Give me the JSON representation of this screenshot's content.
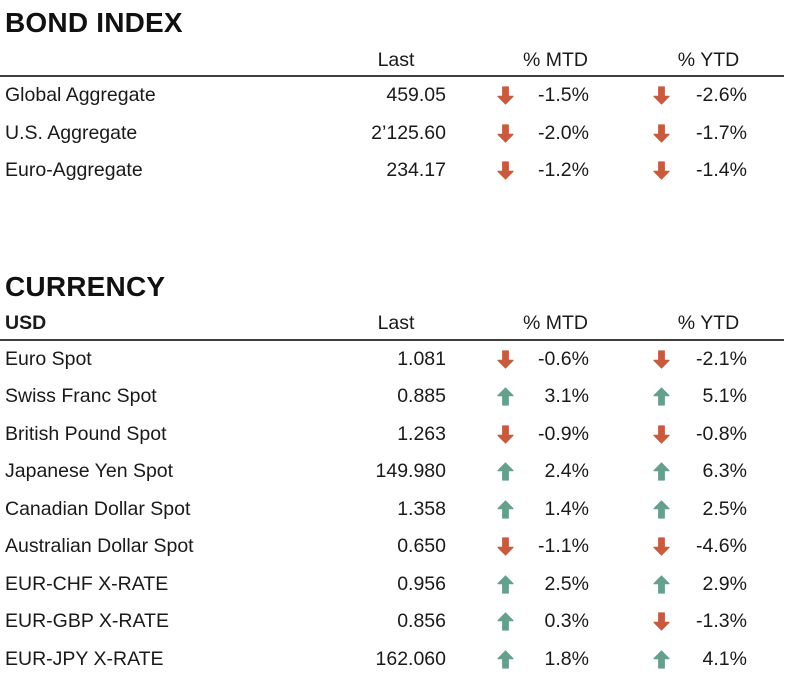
{
  "colors": {
    "up_arrow": "#64a08c",
    "down_arrow": "#c85a3e",
    "rule": "#3f3f3f",
    "text": "#1a1a1a"
  },
  "sections": [
    {
      "title": "BOND INDEX",
      "group_label": "",
      "columns": {
        "last": "Last",
        "mtd": "% MTD",
        "ytd": "% YTD"
      },
      "rows": [
        {
          "name": "Global Aggregate",
          "last": "459.05",
          "mtd_dir": "down",
          "mtd": "-1.5%",
          "ytd_dir": "down",
          "ytd": "-2.6%"
        },
        {
          "name": "U.S. Aggregate",
          "last": "2’125.60",
          "mtd_dir": "down",
          "mtd": "-2.0%",
          "ytd_dir": "down",
          "ytd": "-1.7%"
        },
        {
          "name": "Euro-Aggregate",
          "last": "234.17",
          "mtd_dir": "down",
          "mtd": "-1.2%",
          "ytd_dir": "down",
          "ytd": "-1.4%"
        }
      ]
    },
    {
      "title": "CURRENCY",
      "group_label": "USD",
      "columns": {
        "last": "Last",
        "mtd": "% MTD",
        "ytd": "% YTD"
      },
      "rows": [
        {
          "name": "Euro Spot",
          "last": "1.081",
          "mtd_dir": "down",
          "mtd": "-0.6%",
          "ytd_dir": "down",
          "ytd": "-2.1%"
        },
        {
          "name": "Swiss Franc Spot",
          "last": "0.885",
          "mtd_dir": "up",
          "mtd": "3.1%",
          "ytd_dir": "up",
          "ytd": "5.1%"
        },
        {
          "name": "British Pound Spot",
          "last": "1.263",
          "mtd_dir": "down",
          "mtd": "-0.9%",
          "ytd_dir": "down",
          "ytd": "-0.8%"
        },
        {
          "name": "Japanese Yen Spot",
          "last": "149.980",
          "mtd_dir": "up",
          "mtd": "2.4%",
          "ytd_dir": "up",
          "ytd": "6.3%"
        },
        {
          "name": "Canadian Dollar Spot",
          "last": "1.358",
          "mtd_dir": "up",
          "mtd": "1.4%",
          "ytd_dir": "up",
          "ytd": "2.5%"
        },
        {
          "name": "Australian Dollar Spot",
          "last": "0.650",
          "mtd_dir": "down",
          "mtd": "-1.1%",
          "ytd_dir": "down",
          "ytd": "-4.6%"
        },
        {
          "name": "EUR-CHF X-RATE",
          "last": "0.956",
          "mtd_dir": "up",
          "mtd": "2.5%",
          "ytd_dir": "up",
          "ytd": "2.9%"
        },
        {
          "name": "EUR-GBP X-RATE",
          "last": "0.856",
          "mtd_dir": "up",
          "mtd": "0.3%",
          "ytd_dir": "down",
          "ytd": "-1.3%"
        },
        {
          "name": "EUR-JPY X-RATE",
          "last": "162.060",
          "mtd_dir": "up",
          "mtd": "1.8%",
          "ytd_dir": "up",
          "ytd": "4.1%"
        }
      ]
    }
  ]
}
